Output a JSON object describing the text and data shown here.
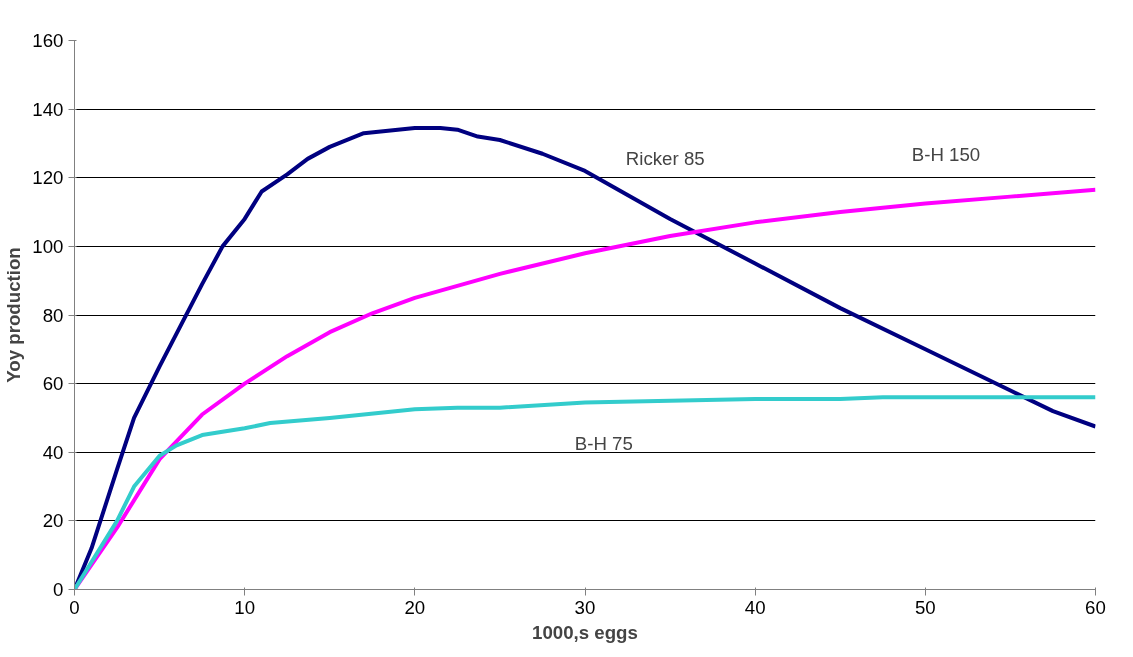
{
  "chart_data": {
    "type": "line",
    "xlabel": "1000,s eggs",
    "ylabel": "Yoy production",
    "xlim": [
      0,
      60
    ],
    "xticks": [
      0,
      10,
      20,
      30,
      40,
      50,
      60
    ],
    "ylim": [
      0,
      160
    ],
    "yticks": [
      0,
      20,
      40,
      60,
      80,
      100,
      120,
      140,
      160
    ],
    "grid": "y",
    "marker": "none",
    "line_style": "solid",
    "series": [
      {
        "name": "Ricker 85",
        "color": "#000080",
        "x": [
          0,
          1,
          2.5,
          3.5,
          5,
          7.5,
          8.7,
          10,
          11,
          12.5,
          13.7,
          15,
          17,
          20,
          21.5,
          22.5,
          23.7,
          25,
          27.5,
          30,
          35,
          40,
          45,
          50,
          55,
          57.5,
          60
        ],
        "values": [
          0,
          12,
          35,
          50,
          65,
          89,
          100,
          108,
          116,
          121,
          125.5,
          129,
          133,
          134.5,
          134.5,
          134,
          132,
          131,
          127,
          122,
          108,
          95,
          82,
          70,
          58,
          52,
          47.5
        ]
      },
      {
        "name": "B-H 150",
        "color": "#ff00ff",
        "x": [
          0,
          2.5,
          5,
          7.5,
          10,
          12.5,
          15,
          17.5,
          20,
          25,
          30,
          35,
          40,
          45,
          50,
          55,
          60
        ],
        "values": [
          0,
          18,
          38,
          51,
          60,
          68,
          75,
          80.5,
          85,
          92,
          98,
          103,
          107,
          110,
          112.5,
          114.5,
          116.5
        ]
      },
      {
        "name": "B-H 75",
        "color": "#33cccc",
        "x": [
          0,
          1,
          2.5,
          3.5,
          5,
          6,
          7.5,
          8.7,
          10,
          11.5,
          15,
          20,
          22.5,
          25,
          30,
          40,
          45,
          47.5,
          60
        ],
        "values": [
          0,
          8,
          20,
          30,
          39,
          42,
          45,
          46,
          47,
          48.5,
          50,
          52.5,
          53,
          53,
          54.5,
          55.5,
          55.5,
          56,
          56
        ]
      }
    ]
  }
}
